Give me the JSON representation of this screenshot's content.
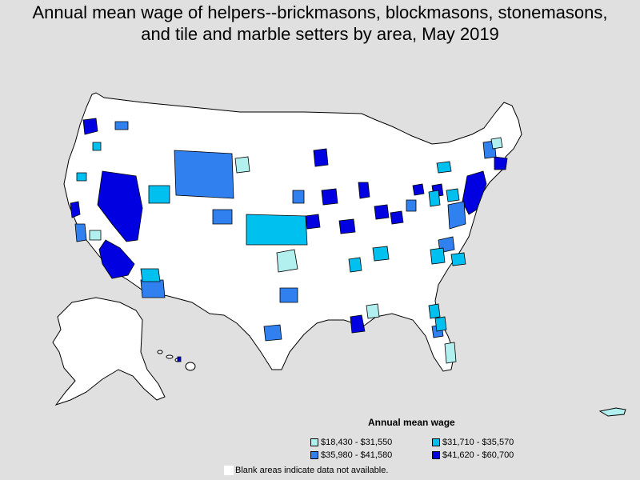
{
  "title_line1": "Annual mean wage of helpers--brickmasons, blockmasons, stonemasons,",
  "title_line2": "and tile and marble setters by area, May 2019",
  "legend": {
    "title": "Annual mean wage",
    "items": [
      {
        "label": "$18,430 - $31,550",
        "color": "#b2f0f0"
      },
      {
        "label": "$31,710 - $35,570",
        "color": "#00c0f0"
      },
      {
        "label": "$35,980 - $41,580",
        "color": "#3080f0"
      },
      {
        "label": "$41,620 - $60,700",
        "color": "#0000e0"
      }
    ]
  },
  "note": "Blank areas indicate data not available.",
  "colors": {
    "background": "#e0e0e0",
    "no_data": "#ffffff",
    "outline": "#000000"
  }
}
